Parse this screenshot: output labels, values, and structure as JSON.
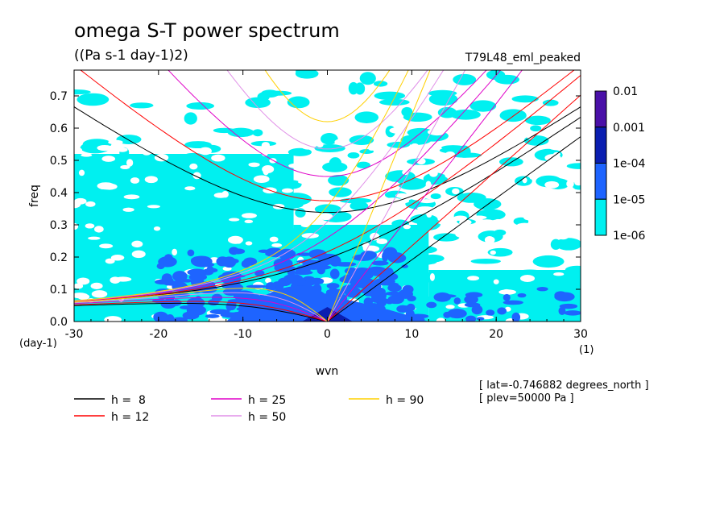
{
  "chart_data": {
    "type": "heatmap",
    "title": "omega S-T power spectrum",
    "units": "((Pa s-1 day-1)2)",
    "run_label": "T79L48_eml_peaked",
    "xlabel": "wvn",
    "ylabel": "freq",
    "x_unit_label": "(1)",
    "y_unit_label": "(day-1)",
    "xlim": [
      -30,
      30
    ],
    "ylim": [
      0.0,
      0.78
    ],
    "x_ticks": [
      -30,
      -20,
      -10,
      0,
      10,
      20,
      30
    ],
    "x_tick_labels": [
      "-30",
      "-20",
      "-10",
      "0",
      "10",
      "20",
      "30"
    ],
    "y_ticks": [
      0.0,
      0.1,
      0.2,
      0.3,
      0.4,
      0.5,
      0.6,
      0.7
    ],
    "y_tick_labels": [
      "0.0",
      "0.1",
      "0.2",
      "0.3",
      "0.4",
      "0.5",
      "0.6",
      "0.7"
    ],
    "colorbar": {
      "levels": [
        "0.01",
        "0.001",
        "1e-04",
        "1e-05",
        "1e-06"
      ],
      "colors": [
        "#4a10a8",
        "#0a1eb0",
        "#1e64ff",
        "#00f0f0"
      ]
    },
    "series": [
      {
        "name": "h =  8",
        "h": 8,
        "color": "#000000"
      },
      {
        "name": "h = 12",
        "h": 12,
        "color": "#ff0000"
      },
      {
        "name": "h = 25",
        "h": 25,
        "color": "#e000c8"
      },
      {
        "name": "h = 50",
        "h": 50,
        "color": "#e090e8"
      },
      {
        "name": "h = 90",
        "h": 90,
        "color": "#ffd000"
      }
    ],
    "notes": [
      "[ lat=-0.746882 degrees_north ]",
      "[ plev=50000 Pa ]"
    ]
  }
}
